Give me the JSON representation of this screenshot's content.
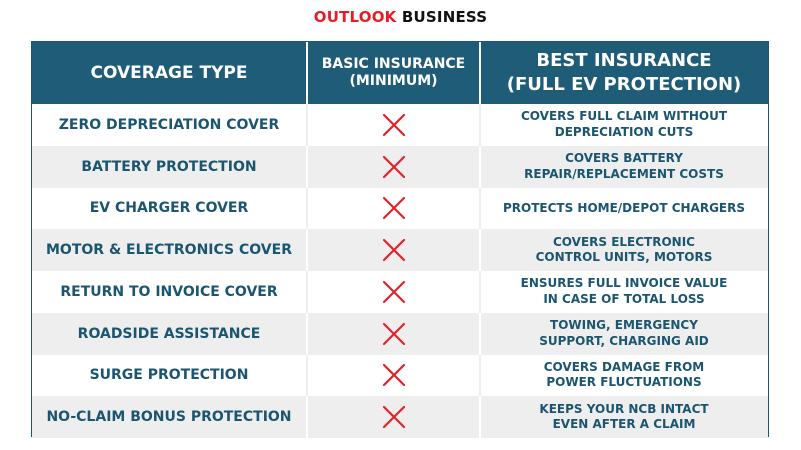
{
  "brand": {
    "part1": "OUTLOOK",
    "part2": " BUSINESS",
    "accent": "#e41e26"
  },
  "table": {
    "headers": {
      "coverage": "COVERAGE TYPE",
      "basic": "BASIC INSURANCE\n(MINIMUM)",
      "best": "BEST INSURANCE\n(FULL EV PROTECTION)"
    },
    "header_color": "#1f5c78",
    "text_color": "#1b5570",
    "rows": [
      {
        "coverage": "ZERO DEPRECIATION COVER",
        "basic_icon": "cross-icon",
        "best": "COVERS FULL CLAIM WITHOUT\nDEPRECIATION CUTS"
      },
      {
        "coverage": "BATTERY PROTECTION",
        "basic_icon": "cross-icon",
        "best": "COVERS BATTERY\nREPAIR/REPLACEMENT COSTS"
      },
      {
        "coverage": "EV CHARGER COVER",
        "basic_icon": "cross-icon",
        "best": "PROTECTS HOME/DEPOT CHARGERS"
      },
      {
        "coverage": "MOTOR & ELECTRONICS COVER",
        "basic_icon": "cross-icon",
        "best": "COVERS ELECTRONIC\nCONTROL UNITS, MOTORS"
      },
      {
        "coverage": "RETURN TO INVOICE COVER",
        "basic_icon": "cross-icon",
        "best": "ENSURES FULL INVOICE VALUE\nIN CASE OF TOTAL LOSS"
      },
      {
        "coverage": "ROADSIDE ASSISTANCE",
        "basic_icon": "cross-icon",
        "best": "TOWING, EMERGENCY\nSUPPORT, CHARGING AID"
      },
      {
        "coverage": "SURGE PROTECTION",
        "basic_icon": "cross-icon",
        "best": "COVERS DAMAGE FROM\nPOWER FLUCTUATIONS"
      },
      {
        "coverage": "NO-CLAIM BONUS PROTECTION",
        "basic_icon": "cross-icon",
        "best": "KEEPS YOUR NCB INTACT\nEVEN AFTER A CLAIM"
      }
    ]
  }
}
